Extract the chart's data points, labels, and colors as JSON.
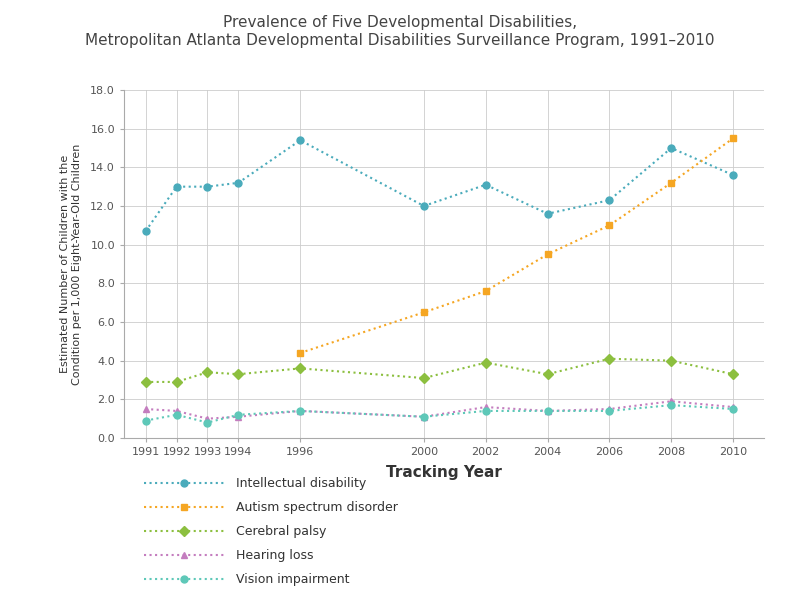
{
  "title_line1": "Prevalence of Five Developmental Disabilities,",
  "title_line2": "Metropolitan Atlanta Developmental Disabilities Surveillance Program, 1991–2010",
  "xlabel": "Tracking Year",
  "ylabel": "Estimated Number of Children with the\nCondition per 1,000 Eight-Year-Old Children",
  "years": [
    1991,
    1992,
    1993,
    1994,
    1996,
    2000,
    2002,
    2004,
    2006,
    2008,
    2010
  ],
  "intellectual_disability": [
    10.7,
    13.0,
    13.0,
    13.2,
    15.4,
    12.0,
    13.1,
    11.6,
    12.3,
    15.0,
    13.6
  ],
  "autism_spectrum_disorder": [
    null,
    null,
    null,
    null,
    4.4,
    6.5,
    7.6,
    9.5,
    11.0,
    13.2,
    15.5
  ],
  "cerebral_palsy": [
    2.9,
    2.9,
    3.4,
    3.3,
    3.6,
    3.1,
    3.9,
    3.3,
    4.1,
    4.0,
    3.3
  ],
  "hearing_loss": [
    1.5,
    1.4,
    1.0,
    1.1,
    1.4,
    1.1,
    1.6,
    1.4,
    1.5,
    1.9,
    1.6
  ],
  "vision_impairment": [
    0.9,
    1.2,
    0.8,
    1.2,
    1.4,
    1.1,
    1.4,
    1.4,
    1.4,
    1.7,
    1.5
  ],
  "colors": {
    "intellectual_disability": "#4AABBB",
    "autism_spectrum_disorder": "#F5A623",
    "cerebral_palsy": "#8CBF3F",
    "hearing_loss": "#C47DBF",
    "vision_impairment": "#5EC8B8"
  },
  "linestyles": {
    "intellectual_disability": ":",
    "autism_spectrum_disorder": ":",
    "cerebral_palsy": ":",
    "hearing_loss": ":",
    "vision_impairment": ":"
  },
  "markers": {
    "intellectual_disability": "o",
    "autism_spectrum_disorder": "s",
    "cerebral_palsy": "D",
    "hearing_loss": "^",
    "vision_impairment": "o"
  },
  "legend_labels": [
    "Intellectual disability",
    "Autism spectrum disorder",
    "Cerebral palsy",
    "Hearing loss",
    "Vision impairment"
  ],
  "ylim": [
    0.0,
    18.0
  ],
  "yticks": [
    0.0,
    2.0,
    4.0,
    6.0,
    8.0,
    10.0,
    12.0,
    14.0,
    16.0,
    18.0
  ],
  "background_color": "#FFFFFF",
  "grid_color": "#CCCCCC",
  "title_fontsize": 11,
  "axis_label_fontsize": 9,
  "xlabel_fontsize": 11,
  "ylabel_fontsize": 8,
  "legend_fontsize": 9,
  "tick_fontsize": 8
}
